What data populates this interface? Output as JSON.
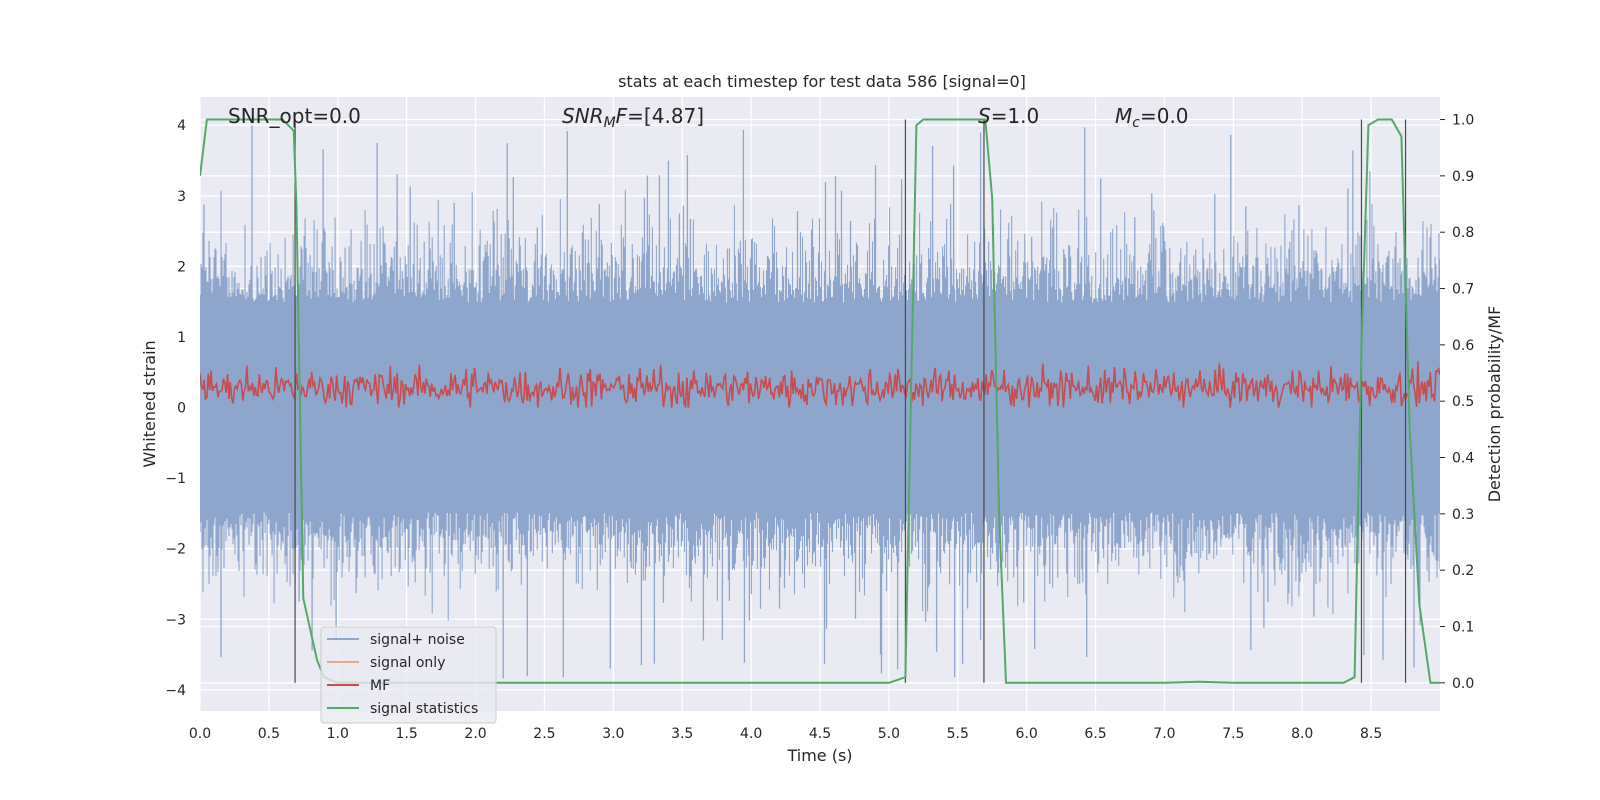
{
  "chart_data": {
    "type": "line",
    "title": "stats at each timestep for test data 586 [signal=0]",
    "xlabel": "Time (s)",
    "ylabel": "Whitened strain",
    "ylabel_right": "Detection probability/MF",
    "xlim": [
      0,
      9
    ],
    "ylim": [
      -4.3,
      4.4
    ],
    "ylim_right": [
      -0.05,
      1.04
    ],
    "x_ticks": [
      "0.0",
      "0.5",
      "1.0",
      "1.5",
      "2.0",
      "2.5",
      "3.0",
      "3.5",
      "4.0",
      "4.5",
      "5.0",
      "5.5",
      "6.0",
      "6.5",
      "7.0",
      "7.5",
      "8.0",
      "8.5"
    ],
    "y_ticks": [
      "−4",
      "−3",
      "−2",
      "−1",
      "0",
      "1",
      "2",
      "3",
      "4"
    ],
    "y_ticks_right": [
      "0.0",
      "0.1",
      "0.2",
      "0.3",
      "0.4",
      "0.5",
      "0.6",
      "0.7",
      "0.8",
      "0.9",
      "1.0"
    ],
    "grid": true,
    "legend_placement": "lower-left",
    "annotations": {
      "snr_opt": "SNR_opt=0.0",
      "snr_mf_a": "SNR",
      "snr_mf_sub": "M",
      "snr_mf_b": "F",
      "snr_mf_val": "=[4.87]",
      "s_sym": "S",
      "s_val": "=1.0",
      "mc_sym": "M",
      "mc_sub": "c",
      "mc_val": "=0.0"
    },
    "series": [
      {
        "name": "signal+ noise",
        "color": "#8fa6cc",
        "x_range": [
          0,
          9
        ],
        "y_range_typical": [
          -2.4,
          2.4
        ],
        "y_extremes": [
          -3.9,
          4.0
        ]
      },
      {
        "name": "signal only",
        "color": "#e8a88a",
        "values": []
      },
      {
        "name": "MF",
        "color": "#c44e52",
        "x_range": [
          0,
          9
        ],
        "y_range": [
          0.0,
          0.8
        ]
      },
      {
        "name": "signal statistics",
        "color": "#55a868",
        "x": [
          0.0,
          0.05,
          0.1,
          0.6,
          0.68,
          0.7,
          0.75,
          0.85,
          0.9,
          1.0,
          5.0,
          5.12,
          5.2,
          5.25,
          5.7,
          5.75,
          5.8,
          5.85,
          6.0,
          7.0,
          7.25,
          7.5,
          8.3,
          8.38,
          8.43,
          8.48,
          8.55,
          8.65,
          8.72,
          8.78,
          8.85,
          8.93,
          9.0
        ],
        "values": [
          0.9,
          1.0,
          1.0,
          1.0,
          0.98,
          0.85,
          0.15,
          0.04,
          0.01,
          0.0,
          0.0,
          0.01,
          0.99,
          1.0,
          1.0,
          0.86,
          0.3,
          0.0,
          0.0,
          0.0,
          0.002,
          0.0,
          0.0,
          0.01,
          0.6,
          0.99,
          1.0,
          1.0,
          0.97,
          0.45,
          0.14,
          0.0,
          0.0
        ]
      }
    ],
    "vertical_markers": [
      0.69,
      5.12,
      5.69,
      8.43,
      8.75
    ]
  }
}
